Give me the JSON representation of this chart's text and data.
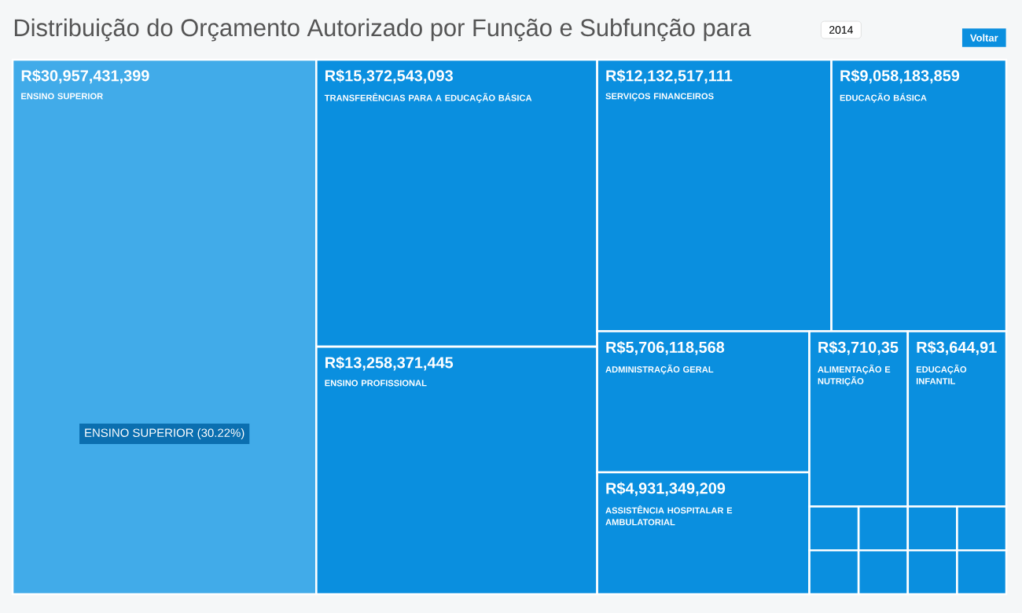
{
  "chart_data": {
    "type": "other",
    "title": "Distribuição do Orçamento Autorizado por Função e Subfunção para",
    "categories": [
      "ENSINO SUPERIOR",
      "TRANSFERÊNCIAS PARA A EDUCAÇÃO BÁSICA",
      "ENSINO PROFISSIONAL",
      "SERVIÇOS FINANCEIROS",
      "EDUCAÇÃO BÁSICA",
      "ADMINISTRAÇÃO GERAL",
      "ASSISTÊNCIA HOSPITALAR E AMBULATORIAL",
      "ALIMENTAÇÃO E NUTRIÇÃO",
      "EDUCAÇÃO INFANTIL",
      null,
      null,
      null,
      null,
      null,
      null,
      null,
      null
    ],
    "values": [
      30957431399,
      15372543093,
      13258371445,
      12132517111,
      9058183859,
      5706118568,
      4931349209,
      null,
      null,
      null,
      null,
      null,
      null,
      null,
      null,
      null,
      null
    ],
    "value_labels": [
      "R$30,957,431,399",
      "R$15,372,543,093",
      "R$13,258,371,445",
      "R$12,132,517,111",
      "R$9,058,183,859",
      "R$5,706,118,568",
      "R$4,931,349,209",
      "R$3,710,35",
      "R$3,644,91",
      null,
      null,
      null,
      null,
      null,
      null,
      null,
      null
    ],
    "colors": [
      "#41abe9",
      "#0a8fdf",
      "#0a8fdf",
      "#0a8fdf",
      "#0a8fdf",
      "#0a8fdf",
      "#0a8fdf",
      "#0a8fdf",
      "#0a8fdf",
      "#0a8fdf",
      "#0a8fdf",
      "#0a8fdf",
      "#0a8fdf",
      "#0a8fdf",
      "#0a8fdf",
      "#0a8fdf",
      "#0a8fdf"
    ],
    "annotations": [
      "2014",
      "Voltar",
      "ENSINO SUPERIOR (30.22%)"
    ]
  }
}
